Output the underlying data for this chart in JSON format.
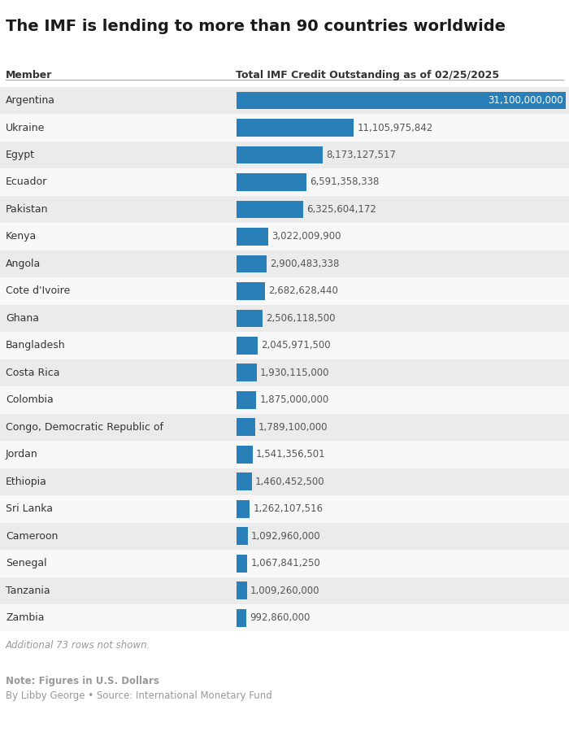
{
  "title": "The IMF is lending to more than 90 countries worldwide",
  "col_member": "Member",
  "col_value": "Total IMF Credit Outstanding as of 02/25/2025",
  "countries": [
    "Argentina",
    "Ukraine",
    "Egypt",
    "Ecuador",
    "Pakistan",
    "Kenya",
    "Angola",
    "Cote d'Ivoire",
    "Ghana",
    "Bangladesh",
    "Costa Rica",
    "Colombia",
    "Congo, Democratic Republic of",
    "Jordan",
    "Ethiopia",
    "Sri Lanka",
    "Cameroon",
    "Senegal",
    "Tanzania",
    "Zambia"
  ],
  "values": [
    31100000000,
    11105975842,
    8173127517,
    6591358338,
    6325604172,
    3022009900,
    2900483338,
    2682628440,
    2506118500,
    2045971500,
    1930115000,
    1875000000,
    1789100000,
    1541356501,
    1460452500,
    1262107516,
    1092960000,
    1067841250,
    1009260000,
    992860000
  ],
  "value_labels": [
    "31,100,000,000",
    "11,105,975,842",
    "8,173,127,517",
    "6,591,358,338",
    "6,325,604,172",
    "3,022,009,900",
    "2,900,483,338",
    "2,682,628,440",
    "2,506,118,500",
    "2,045,971,500",
    "1,930,115,000",
    "1,875,000,000",
    "1,789,100,000",
    "1,541,356,501",
    "1,460,452,500",
    "1,262,107,516",
    "1,092,960,000",
    "1,067,841,250",
    "1,009,260,000",
    "992,860,000"
  ],
  "bar_color": "#2980b9",
  "row_bg_even": "#ebebeb",
  "row_bg_odd": "#f8f8f8",
  "title_color": "#1a1a1a",
  "label_color": "#333333",
  "value_color": "#555555",
  "header_color": "#333333",
  "note_color": "#999999",
  "additional_note": "Additional 73 rows not shown.",
  "note_line1": "Note: Figures in U.S. Dollars",
  "note_line2": "By Libby George • Source: International Monetary Fund",
  "bg_color": "#ffffff",
  "header_line_color": "#aaaaaa",
  "title_fontsize": 14,
  "header_fontsize": 9,
  "row_fontsize": 9,
  "note_fontsize": 8.5,
  "col_split": 0.415
}
